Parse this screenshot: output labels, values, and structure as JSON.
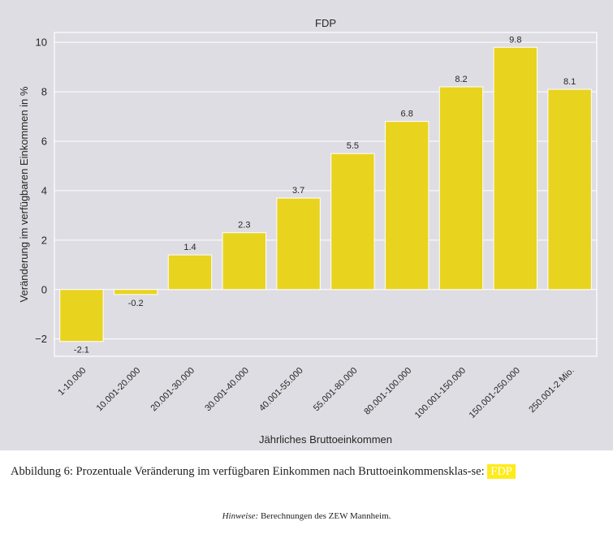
{
  "chart_data": {
    "type": "bar",
    "title": "FDP",
    "xlabel": "Jährliches Bruttoeinkommen",
    "ylabel": "Veränderung im verfügbaren Einkommen in %",
    "categories": [
      "1-10.000",
      "10.001-20.000",
      "20.001-30.000",
      "30.001-40.000",
      "40.001-55.000",
      "55.001-80.000",
      "80.001-100.000",
      "100.001-150.000",
      "150.001-250.000",
      "250.001-2 Mio."
    ],
    "values": [
      -2.1,
      -0.2,
      1.4,
      2.3,
      3.7,
      5.5,
      6.8,
      8.2,
      9.8,
      8.1
    ],
    "value_labels": [
      "-2.1",
      "-0.2",
      "1.4",
      "2.3",
      "3.7",
      "5.5",
      "6.8",
      "8.2",
      "9.8",
      "8.1"
    ],
    "ylim": [
      -2.7,
      10.4
    ],
    "yticks": [
      -2,
      0,
      2,
      4,
      6,
      8,
      10
    ],
    "ytick_labels": [
      "−2",
      "0",
      "2",
      "4",
      "6",
      "8",
      "10"
    ],
    "grid": true,
    "bar_color": "#e8d31f",
    "background_color": "#dedde3"
  },
  "caption": {
    "text": "Abbildung 6: Prozentuale Veränderung im verfügbaren Einkommen nach Bruttoeinkommensklas-se:",
    "highlight": "FDP",
    "highlight_color": "#ffeb1b"
  },
  "note": {
    "label": "Hinweise:",
    "text": " Berechnungen des ZEW Mannheim."
  }
}
